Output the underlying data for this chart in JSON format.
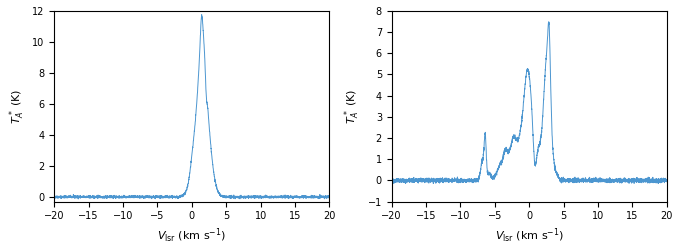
{
  "xlim": [
    -20,
    20
  ],
  "ylim1": [
    -0.3,
    12
  ],
  "ylim2": [
    -1.0,
    8
  ],
  "yticks1": [
    0,
    2,
    4,
    6,
    8,
    10,
    12
  ],
  "yticks2": [
    -1,
    0,
    1,
    2,
    3,
    4,
    5,
    6,
    7,
    8
  ],
  "xticks": [
    -20,
    -15,
    -10,
    -5,
    0,
    5,
    10,
    15,
    20
  ],
  "xlabel": "$V_{\\mathrm{lsr}}$ (km s$^{-1}$)",
  "ylabel": "$T^*_A$ (K)",
  "line_color": "#4c96d0",
  "line_width": 0.7,
  "figsize": [
    6.8,
    2.52
  ],
  "dpi": 100,
  "noise_seed": 42
}
